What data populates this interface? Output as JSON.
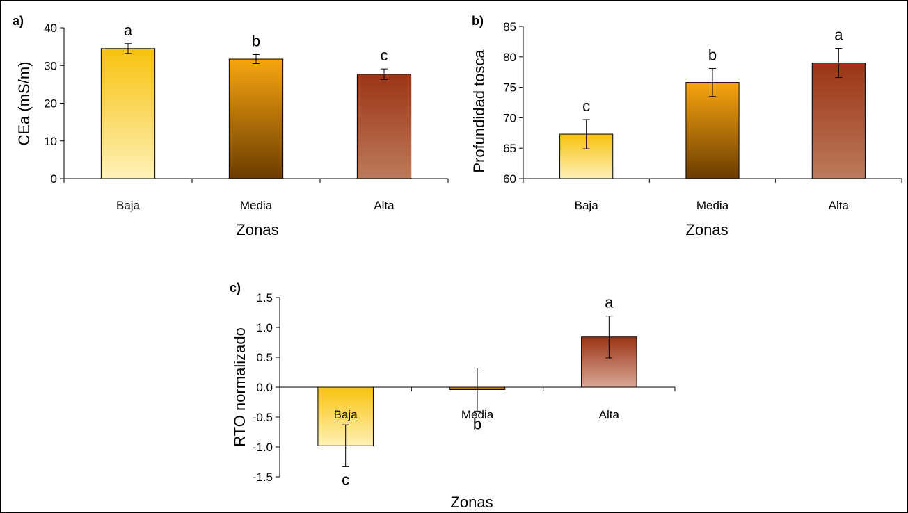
{
  "chart_data": [
    {
      "panel_label": "a)",
      "type": "bar",
      "xlabel": "Zonas",
      "ylabel": "CEa (mS/m)",
      "ylim": [
        0,
        40
      ],
      "yticks": [
        "0",
        "10",
        "20",
        "30",
        "40"
      ],
      "categories": [
        "Baja",
        "Media",
        "Alta"
      ],
      "values": [
        34.5,
        31.7,
        27.7
      ],
      "errors": [
        1.3,
        1.2,
        1.4
      ],
      "letters": [
        "a",
        "b",
        "c"
      ],
      "colors": [
        [
          "#f7c20e",
          "#fff1b8"
        ],
        [
          "#f7a510",
          "#6b3c00"
        ],
        [
          "#9b3416",
          "#bd7a5c"
        ]
      ],
      "grid": false
    },
    {
      "panel_label": "b)",
      "type": "bar",
      "xlabel": "Zonas",
      "ylabel": "Profundidad tosca",
      "ylim": [
        60,
        85
      ],
      "yticks": [
        "60",
        "65",
        "70",
        "75",
        "80",
        "85"
      ],
      "categories": [
        "Baja",
        "Media",
        "Alta"
      ],
      "values": [
        67.3,
        75.8,
        79.0
      ],
      "errors": [
        2.4,
        2.3,
        2.4
      ],
      "letters": [
        "c",
        "b",
        "a"
      ],
      "colors": [
        [
          "#f7c20e",
          "#fff1b8"
        ],
        [
          "#f7a510",
          "#6b3c00"
        ],
        [
          "#9b3416",
          "#bd7a5c"
        ]
      ],
      "grid": false
    },
    {
      "panel_label": "c)",
      "type": "bar",
      "xlabel": "Zonas",
      "ylabel": "RTO normalizado",
      "ylim": [
        -1.5,
        1.5
      ],
      "yticks": [
        "-1.5",
        "-1.0",
        "-0.5",
        "0.0",
        "0.5",
        "1.0",
        "1.5"
      ],
      "categories": [
        "Baja",
        "Media",
        "Alta"
      ],
      "values": [
        -0.98,
        -0.04,
        0.84
      ],
      "errors": [
        0.35,
        0.36,
        0.35
      ],
      "letters": [
        "c",
        "b",
        "a"
      ],
      "colors": [
        [
          "#f7c20e",
          "#fff1b8"
        ],
        [
          "#f7a510",
          "#6b3c00"
        ],
        [
          "#9b3416",
          "#d8a896"
        ]
      ],
      "grid": false
    }
  ]
}
